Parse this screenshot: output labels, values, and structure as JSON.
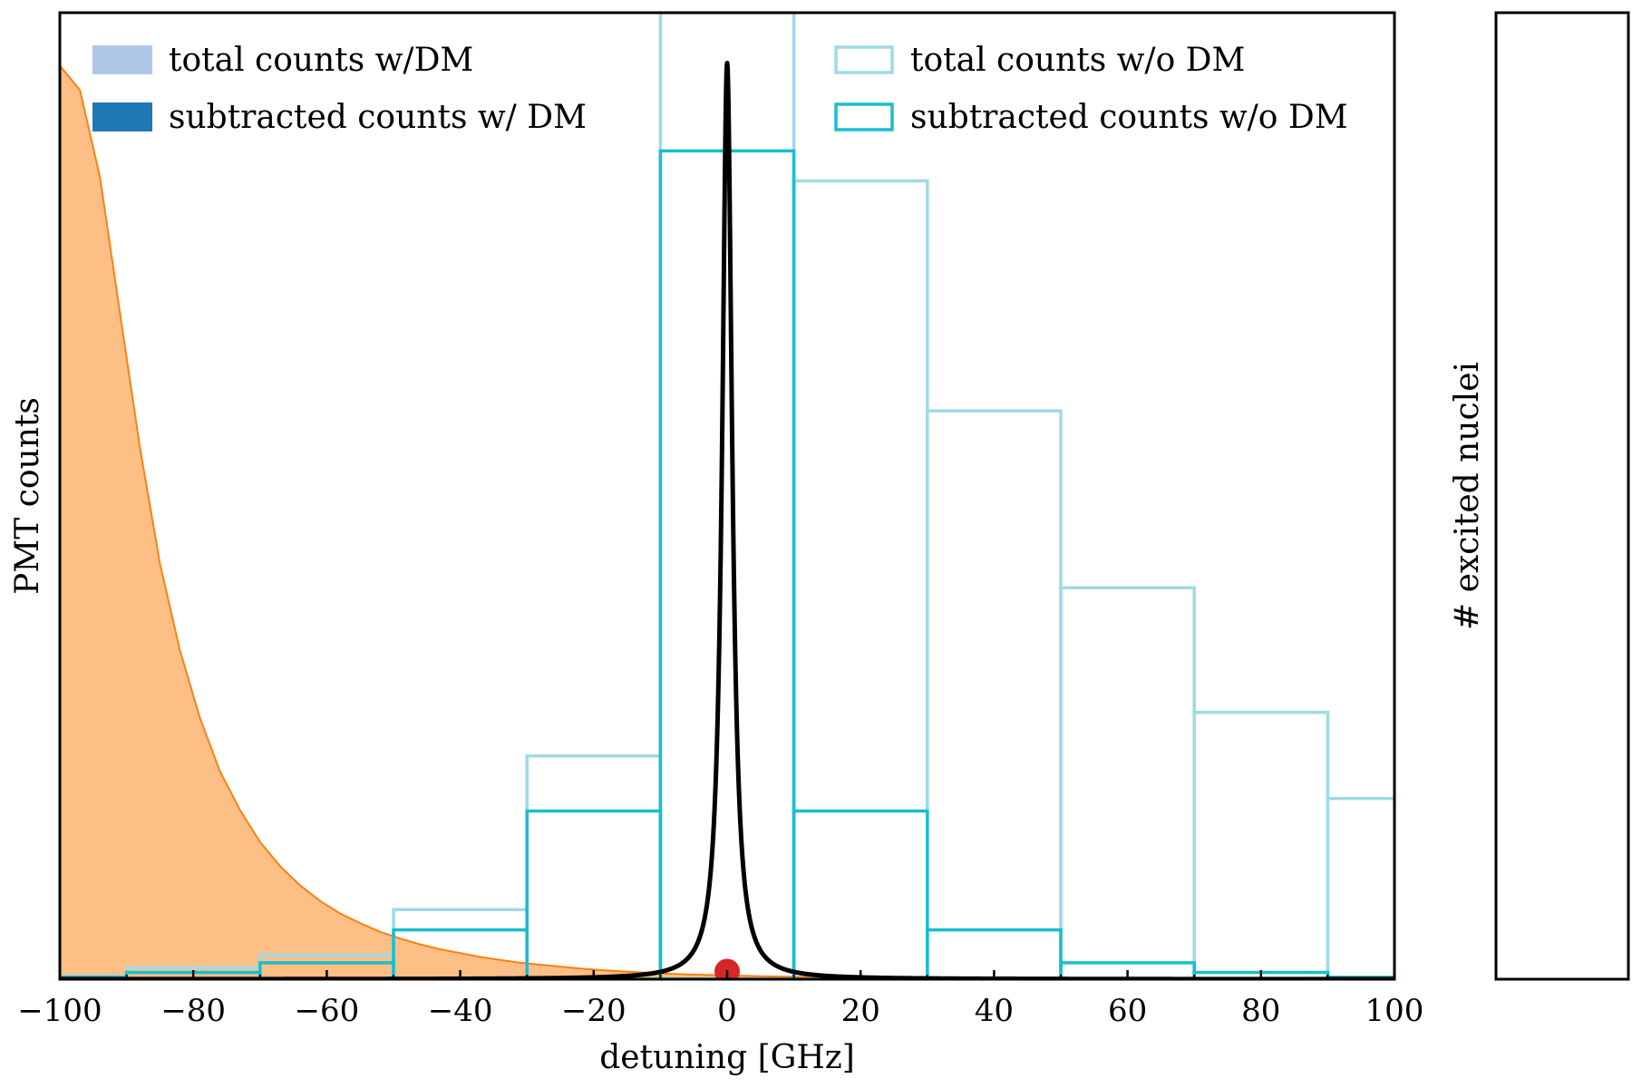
{
  "chart_data": {
    "type": "bar",
    "xlabel": "detuning [GHz]",
    "ylabel": "PMT counts",
    "right_ylabel": "# excited nuclei",
    "xlim": [
      -100,
      100
    ],
    "ylim": [
      0,
      1.0
    ],
    "x_ticks": [
      -100,
      -80,
      -60,
      -40,
      -20,
      0,
      20,
      40,
      60,
      80,
      100
    ],
    "x_tick_labels": [
      "−100",
      "−80",
      "−60",
      "−40",
      "−20",
      "0",
      "20",
      "40",
      "60",
      "80",
      "100"
    ],
    "grid": false,
    "bin_edges": [
      -110,
      -90,
      -70,
      -50,
      -30,
      -10,
      10,
      30,
      50,
      70,
      90,
      110
    ],
    "series": [
      {
        "name": "total counts w/DM",
        "kind": "filled-hist",
        "color": "#aec7e8",
        "values": []
      },
      {
        "name": "subtracted counts w/ DM",
        "kind": "filled-hist",
        "color": "#1f77b4",
        "values": []
      },
      {
        "name": "total counts w/o DM",
        "kind": "step-hist",
        "color": "#9edae5",
        "values": [
          0.003,
          0.012,
          0.025,
          0.072,
          0.231,
          1.0,
          0.826,
          0.588,
          0.405,
          0.276,
          0.187
        ]
      },
      {
        "name": "subtracted counts w/o DM",
        "kind": "step-hist",
        "color": "#17becf",
        "values": [
          0.002,
          0.007,
          0.017,
          0.051,
          0.174,
          0.857,
          0.174,
          0.051,
          0.017,
          0.007,
          0.002
        ]
      },
      {
        "kind": "filled-curve",
        "color": "#ff7f0e",
        "fill": "#fdbf86",
        "x": [
          -100,
          -97,
          -94,
          -91,
          -88,
          -85,
          -82,
          -79,
          -76,
          -73,
          -70,
          -67,
          -64,
          -61,
          -58,
          -55,
          -52,
          -49,
          -46,
          -43,
          -40,
          -37,
          -34,
          -31,
          -28,
          -25,
          -22,
          -19,
          -16,
          -13,
          -10,
          -5,
          0,
          5,
          10,
          20,
          30,
          40,
          50,
          60,
          70,
          80,
          90,
          100
        ],
        "values": [
          0.945,
          0.92,
          0.83,
          0.69,
          0.55,
          0.43,
          0.34,
          0.27,
          0.215,
          0.175,
          0.142,
          0.117,
          0.097,
          0.081,
          0.068,
          0.058,
          0.049,
          0.042,
          0.036,
          0.031,
          0.027,
          0.023,
          0.02,
          0.017,
          0.015,
          0.013,
          0.011,
          0.0095,
          0.0082,
          0.007,
          0.006,
          0.0048,
          0.0038,
          0.003,
          0.0024,
          0.0016,
          0.0011,
          0.0008,
          0.0006,
          0.0004,
          0.0003,
          0.0002,
          0.0001,
          0.0
        ]
      },
      {
        "kind": "line",
        "color": "#000000",
        "center": 0,
        "peak": 0.948,
        "half_width": 0.9,
        "x_range": [
          -100,
          100
        ]
      },
      {
        "kind": "point",
        "color": "#d62728",
        "x": 0,
        "y": 0.008
      }
    ],
    "legend": {
      "placement": "top",
      "entries": [
        {
          "label": "total counts w/DM",
          "swatch": "filled",
          "color": "#aec7e8"
        },
        {
          "label": "subtracted counts w/ DM",
          "swatch": "filled",
          "color": "#1f77b4"
        },
        {
          "label": "total counts w/o DM",
          "swatch": "outline",
          "color": "#9edae5"
        },
        {
          "label": "subtracted counts w/o DM",
          "swatch": "outline",
          "color": "#17becf"
        }
      ]
    }
  }
}
